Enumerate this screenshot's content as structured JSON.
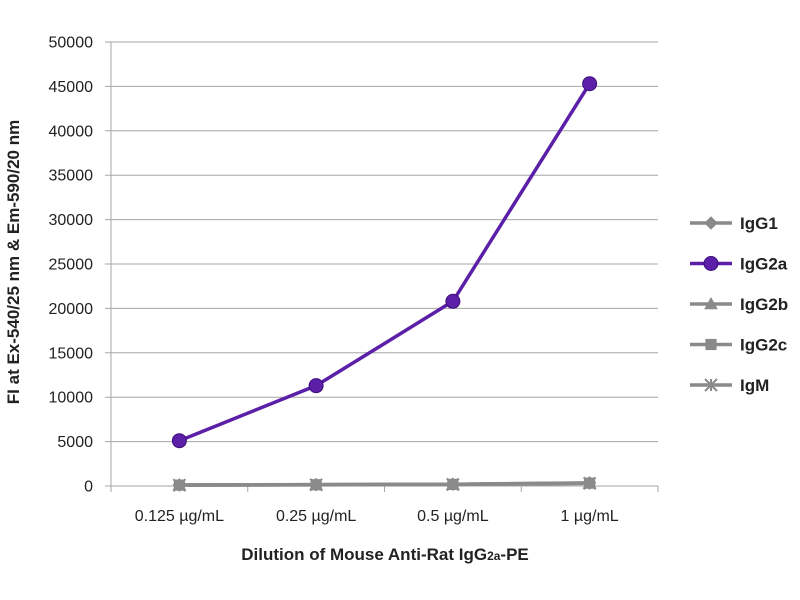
{
  "chart_data": {
    "type": "line",
    "categories": [
      "0.125 µg/mL",
      "0.25 µg/mL",
      "0.5 µg/mL",
      "1 µg/mL"
    ],
    "series": [
      {
        "name": "IgG1",
        "values": [
          120,
          160,
          200,
          350
        ],
        "color": "#8a8a8a",
        "marker": "diamond"
      },
      {
        "name": "IgG2a",
        "values": [
          5100,
          11300,
          20800,
          45300
        ],
        "color": "#5b1fa8",
        "marker": "circle"
      },
      {
        "name": "IgG2b",
        "values": [
          110,
          150,
          190,
          330
        ],
        "color": "#8a8a8a",
        "marker": "triangle"
      },
      {
        "name": "IgG2c",
        "values": [
          100,
          140,
          180,
          320
        ],
        "color": "#8a8a8a",
        "marker": "square"
      },
      {
        "name": "IgM",
        "values": [
          90,
          130,
          170,
          300
        ],
        "color": "#8a8a8a",
        "marker": "star"
      }
    ],
    "ylabel": "FI at Ex-540/25 nm & Em-590/20 nm",
    "xlabel": "Dilution of Mouse Anti-Rat IgG2a-PE",
    "xlabel_parts": {
      "pre": "Dilution of Mouse Anti-Rat IgG",
      "sub": "2a",
      "post": "-PE"
    },
    "ylim": [
      0,
      50000
    ],
    "yticks": [
      "0",
      "5000",
      "10000",
      "15000",
      "20000",
      "25000",
      "30000",
      "35000",
      "40000",
      "45000",
      "50000"
    ],
    "grid": true,
    "legend_position": "right"
  }
}
